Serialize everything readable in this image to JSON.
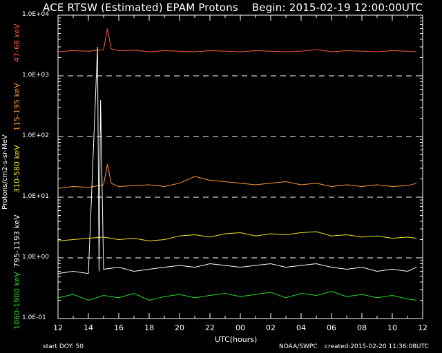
{
  "header": {
    "title": "ACE RTSW (Estimated) EPAM Protons",
    "begin": "Begin: 2015-02-19 12:00:00UTC"
  },
  "footer": {
    "start_doy": "start DOY:  50",
    "source": "NOAA/SWPC",
    "created": "created:2015-02-20 11:36:08UTC"
  },
  "colors": {
    "red": "#ff5a3c",
    "orange": "#ff9a2e",
    "yellow": "#f2e81e",
    "white": "#ffffff",
    "green": "#22e022",
    "grid": "#ffffff",
    "background": "#000000"
  },
  "chart_data": {
    "type": "line",
    "title": "ACE RTSW (Estimated) EPAM Protons",
    "xlabel": "UTC(hours)",
    "ylabel": "Protons/cm2-s-sr-MeV",
    "yscale": "log",
    "ylim": [
      0.1,
      10000
    ],
    "xlim": [
      12,
      36
    ],
    "x_ticks": [
      "12",
      "14",
      "16",
      "18",
      "20",
      "22",
      "00",
      "02",
      "04",
      "06",
      "08",
      "10",
      "12"
    ],
    "y_ticks": [
      "1.0E-01",
      "1.0E+00",
      "1.0E+01",
      "1.0E+02",
      "1.0E+03",
      "1.0E+04"
    ],
    "grid": "dashed horizontal",
    "series": [
      {
        "name": "47-68 keV",
        "color": "#ff5a3c",
        "x": [
          12,
          13,
          14,
          15,
          15.25,
          15.5,
          16,
          17,
          18,
          19,
          20,
          21,
          22,
          23,
          24,
          25,
          26,
          27,
          28,
          29,
          30,
          31,
          32,
          33,
          34,
          35,
          35.6
        ],
        "y": [
          2500,
          2600,
          2550,
          2700,
          6000,
          2800,
          2600,
          2650,
          2500,
          2600,
          2550,
          2500,
          2600,
          2550,
          2500,
          2600,
          2550,
          2500,
          2550,
          2700,
          2500,
          2600,
          2550,
          2500,
          2600,
          2550,
          2500
        ]
      },
      {
        "name": "115-195 keV",
        "color": "#ff9a2e",
        "x": [
          12,
          13,
          14,
          15,
          15.25,
          15.5,
          16,
          17,
          18,
          19,
          20,
          21,
          22,
          23,
          24,
          25,
          26,
          27,
          28,
          29,
          30,
          31,
          32,
          33,
          34,
          35,
          35.6
        ],
        "y": [
          14,
          15,
          14.5,
          16,
          35,
          17,
          15,
          15.5,
          16,
          15,
          17,
          22,
          19,
          18,
          17,
          16,
          17,
          18,
          16,
          17,
          15,
          16,
          15,
          16,
          15,
          15.5,
          17
        ]
      },
      {
        "name": "310-580 keV",
        "color": "#f2e81e",
        "x": [
          12,
          13,
          14,
          15,
          16,
          17,
          18,
          19,
          20,
          21,
          22,
          23,
          24,
          25,
          26,
          27,
          28,
          29,
          30,
          31,
          32,
          33,
          34,
          35,
          35.6
        ],
        "y": [
          1.9,
          2.0,
          2.1,
          2.2,
          2.0,
          2.1,
          1.9,
          2.0,
          2.3,
          2.4,
          2.2,
          2.5,
          2.6,
          2.3,
          2.5,
          2.4,
          2.6,
          2.7,
          2.3,
          2.4,
          2.2,
          2.3,
          2.1,
          2.2,
          2.1
        ]
      },
      {
        "name": "795-1193 keV",
        "color": "#ffffff",
        "x": [
          12,
          13,
          14,
          14.6,
          14.7,
          14.8,
          15,
          16,
          17,
          18,
          19,
          20,
          21,
          22,
          23,
          24,
          25,
          26,
          27,
          28,
          29,
          30,
          31,
          32,
          33,
          34,
          35,
          35.6
        ],
        "y": [
          0.55,
          0.6,
          0.55,
          3000,
          0.6,
          400,
          0.65,
          0.7,
          0.6,
          0.65,
          0.7,
          0.75,
          0.7,
          0.8,
          0.75,
          0.7,
          0.75,
          0.8,
          0.7,
          0.75,
          0.8,
          0.7,
          0.65,
          0.7,
          0.6,
          0.65,
          0.6,
          0.7
        ]
      },
      {
        "name": "1060-1900 keV",
        "color": "#22e022",
        "x": [
          12,
          13,
          14,
          15,
          16,
          17,
          18,
          19,
          20,
          21,
          22,
          23,
          24,
          25,
          26,
          27,
          28,
          29,
          30,
          31,
          32,
          33,
          34,
          35,
          35.6
        ],
        "y": [
          0.22,
          0.25,
          0.2,
          0.24,
          0.22,
          0.26,
          0.2,
          0.23,
          0.25,
          0.22,
          0.24,
          0.26,
          0.23,
          0.25,
          0.27,
          0.22,
          0.26,
          0.24,
          0.28,
          0.23,
          0.25,
          0.22,
          0.24,
          0.21,
          0.2
        ]
      }
    ]
  }
}
